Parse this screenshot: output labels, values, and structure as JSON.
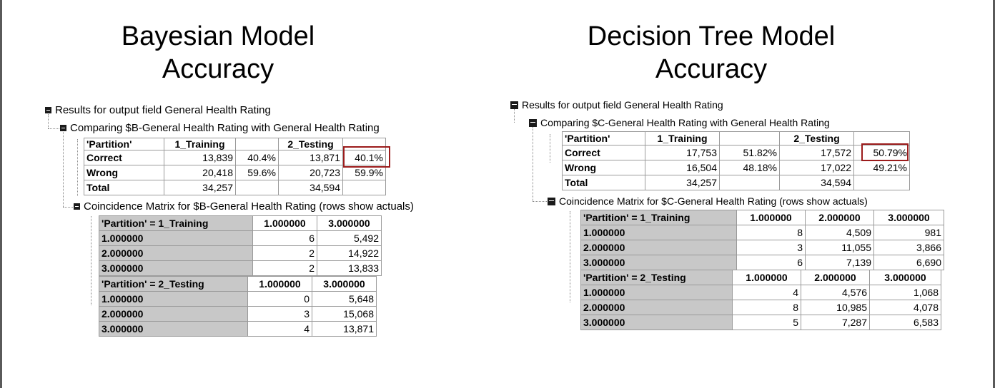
{
  "left_panel": {
    "title_line1": "Bayesian Model",
    "title_line2": "Accuracy",
    "results_label": "Results for output field General Health Rating",
    "comparing_label": "Comparing $B-General Health Rating with General Health Rating",
    "summary": {
      "headers": [
        "'Partition'",
        "1_Training",
        "",
        "2_Testing",
        ""
      ],
      "rows": [
        {
          "label": "Correct",
          "v1": "13,839",
          "p1": "40.4%",
          "v2": "13,871",
          "p2": "40.1%"
        },
        {
          "label": "Wrong",
          "v1": "20,418",
          "p1": "59.6%",
          "v2": "20,723",
          "p2": "59.9%"
        },
        {
          "label": "Total",
          "v1": "34,257",
          "p1": "",
          "v2": "34,594",
          "p2": ""
        }
      ]
    },
    "coincidence_label": "Coincidence Matrix for $B-General Health Rating (rows show actuals)",
    "matrix_training": {
      "header": [
        "'Partition' = 1_Training",
        "1.000000",
        "3.000000"
      ],
      "rows": [
        [
          "1.000000",
          "6",
          "5,492"
        ],
        [
          "2.000000",
          "2",
          "14,922"
        ],
        [
          "3.000000",
          "2",
          "13,833"
        ]
      ]
    },
    "matrix_testing": {
      "header": [
        "'Partition' = 2_Testing",
        "1.000000",
        "3.000000"
      ],
      "rows": [
        [
          "1.000000",
          "0",
          "5,648"
        ],
        [
          "2.000000",
          "3",
          "15,068"
        ],
        [
          "3.000000",
          "4",
          "13,871"
        ]
      ]
    }
  },
  "right_panel": {
    "title_line1": "Decision Tree Model",
    "title_line2": "Accuracy",
    "results_label": "Results for output field General Health Rating",
    "comparing_label": "Comparing $C-General Health Rating with General Health Rating",
    "summary": {
      "headers": [
        "'Partition'",
        "1_Training",
        "",
        "2_Testing",
        ""
      ],
      "rows": [
        {
          "label": "Correct",
          "v1": "17,753",
          "p1": "51.82%",
          "v2": "17,572",
          "p2": "50.79%"
        },
        {
          "label": "Wrong",
          "v1": "16,504",
          "p1": "48.18%",
          "v2": "17,022",
          "p2": "49.21%"
        },
        {
          "label": "Total",
          "v1": "34,257",
          "p1": "",
          "v2": "34,594",
          "p2": ""
        }
      ]
    },
    "coincidence_label": "Coincidence Matrix for $C-General Health Rating (rows show actuals)",
    "matrix_training": {
      "header": [
        "'Partition' = 1_Training",
        "1.000000",
        "2.000000",
        "3.000000"
      ],
      "rows": [
        [
          "1.000000",
          "8",
          "4,509",
          "981"
        ],
        [
          "2.000000",
          "3",
          "11,055",
          "3,866"
        ],
        [
          "3.000000",
          "6",
          "7,139",
          "6,690"
        ]
      ]
    },
    "matrix_testing": {
      "header": [
        "'Partition' = 2_Testing",
        "1.000000",
        "2.000000",
        "3.000000"
      ],
      "rows": [
        [
          "1.000000",
          "4",
          "4,576",
          "1,068"
        ],
        [
          "2.000000",
          "8",
          "10,985",
          "4,078"
        ],
        [
          "3.000000",
          "5",
          "7,287",
          "6,583"
        ]
      ]
    }
  },
  "colors": {
    "highlight_border": "#9b1b1b",
    "row_header_gray": "#c8c8c8"
  }
}
